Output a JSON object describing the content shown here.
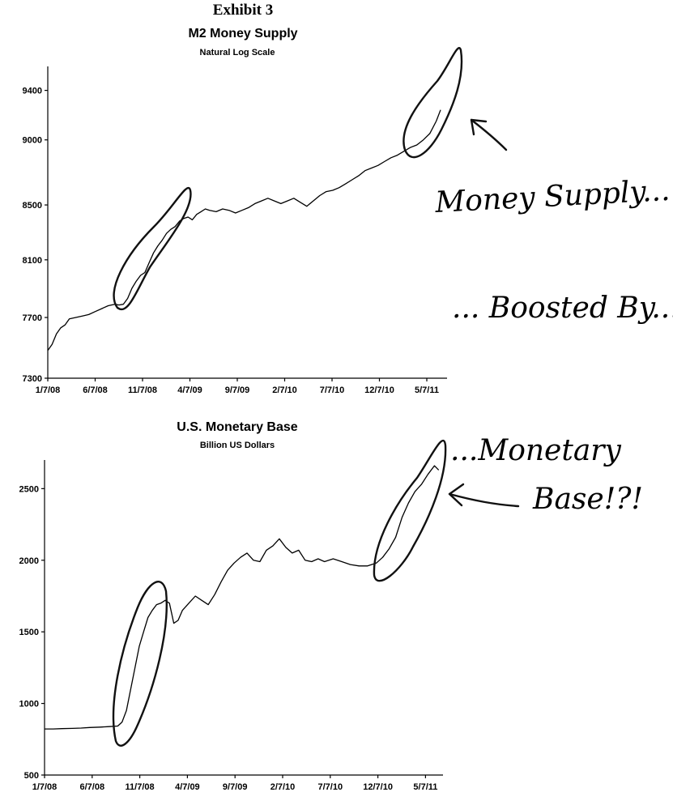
{
  "header": {
    "exhibit": "Exhibit 3"
  },
  "chart_data": [
    {
      "type": "line",
      "title": "M2 Money Supply",
      "subtitle": "Natural Log Scale",
      "xlabel": "",
      "ylabel": "",
      "log_scale": true,
      "ylim": [
        7300,
        9600
      ],
      "yticks": [
        7300,
        7700,
        8100,
        8500,
        9000,
        9400
      ],
      "xticks": [
        "1/7/08",
        "6/7/08",
        "11/7/08",
        "4/7/09",
        "9/7/09",
        "2/7/10",
        "7/7/10",
        "12/7/10",
        "5/7/11"
      ],
      "x_start": "2008-01-07",
      "x_end": "2011-07-25",
      "grid": false,
      "series": [
        {
          "points": [
            [
              "2008-01-07",
              7480
            ],
            [
              "2008-01-21",
              7520
            ],
            [
              "2008-02-04",
              7590
            ],
            [
              "2008-02-18",
              7630
            ],
            [
              "2008-03-03",
              7650
            ],
            [
              "2008-03-17",
              7690
            ],
            [
              "2008-04-07",
              7700
            ],
            [
              "2008-04-28",
              7710
            ],
            [
              "2008-05-19",
              7720
            ],
            [
              "2008-06-09",
              7740
            ],
            [
              "2008-06-30",
              7760
            ],
            [
              "2008-07-21",
              7780
            ],
            [
              "2008-08-11",
              7790
            ],
            [
              "2008-08-25",
              7785
            ],
            [
              "2008-09-08",
              7790
            ],
            [
              "2008-09-22",
              7830
            ],
            [
              "2008-10-06",
              7900
            ],
            [
              "2008-10-20",
              7950
            ],
            [
              "2008-11-03",
              7990
            ],
            [
              "2008-11-17",
              8010
            ],
            [
              "2008-12-01",
              8080
            ],
            [
              "2008-12-15",
              8150
            ],
            [
              "2008-12-29",
              8200
            ],
            [
              "2009-01-12",
              8240
            ],
            [
              "2009-01-26",
              8290
            ],
            [
              "2009-02-09",
              8320
            ],
            [
              "2009-02-23",
              8340
            ],
            [
              "2009-03-09",
              8380
            ],
            [
              "2009-03-23",
              8400
            ],
            [
              "2009-04-06",
              8410
            ],
            [
              "2009-04-20",
              8390
            ],
            [
              "2009-05-04",
              8430
            ],
            [
              "2009-05-18",
              8450
            ],
            [
              "2009-06-01",
              8470
            ],
            [
              "2009-06-15",
              8460
            ],
            [
              "2009-07-06",
              8450
            ],
            [
              "2009-07-27",
              8470
            ],
            [
              "2009-08-17",
              8460
            ],
            [
              "2009-09-07",
              8440
            ],
            [
              "2009-09-28",
              8460
            ],
            [
              "2009-10-19",
              8480
            ],
            [
              "2009-11-09",
              8510
            ],
            [
              "2009-11-30",
              8530
            ],
            [
              "2009-12-21",
              8550
            ],
            [
              "2010-01-11",
              8530
            ],
            [
              "2010-02-01",
              8510
            ],
            [
              "2010-02-22",
              8530
            ],
            [
              "2010-03-15",
              8550
            ],
            [
              "2010-04-05",
              8520
            ],
            [
              "2010-04-26",
              8490
            ],
            [
              "2010-05-17",
              8530
            ],
            [
              "2010-06-07",
              8570
            ],
            [
              "2010-06-28",
              8600
            ],
            [
              "2010-07-19",
              8610
            ],
            [
              "2010-08-09",
              8630
            ],
            [
              "2010-08-30",
              8660
            ],
            [
              "2010-09-20",
              8690
            ],
            [
              "2010-10-11",
              8720
            ],
            [
              "2010-11-01",
              8760
            ],
            [
              "2010-11-22",
              8780
            ],
            [
              "2010-12-13",
              8800
            ],
            [
              "2011-01-03",
              8830
            ],
            [
              "2011-01-24",
              8860
            ],
            [
              "2011-02-14",
              8880
            ],
            [
              "2011-03-07",
              8910
            ],
            [
              "2011-03-28",
              8940
            ],
            [
              "2011-04-18",
              8960
            ],
            [
              "2011-05-09",
              9000
            ],
            [
              "2011-05-30",
              9050
            ],
            [
              "2011-06-20",
              9150
            ],
            [
              "2011-07-04",
              9240
            ]
          ]
        }
      ]
    },
    {
      "type": "line",
      "title": "U.S. Monetary Base",
      "subtitle": "Billion US Dollars",
      "xlabel": "",
      "ylabel": "",
      "ylim": [
        500,
        2700
      ],
      "yticks": [
        500,
        1000,
        1500,
        2000,
        2500
      ],
      "xticks": [
        "1/7/08",
        "6/7/08",
        "11/7/08",
        "4/7/09",
        "9/7/09",
        "2/7/10",
        "7/7/10",
        "12/7/10",
        "5/7/11"
      ],
      "x_start": "2008-01-07",
      "x_end": "2011-07-25",
      "grid": false,
      "series": [
        {
          "points": [
            [
              "2008-01-07",
              822
            ],
            [
              "2008-02-04",
              822
            ],
            [
              "2008-03-03",
              824
            ],
            [
              "2008-04-07",
              826
            ],
            [
              "2008-05-05",
              828
            ],
            [
              "2008-06-02",
              832
            ],
            [
              "2008-07-07",
              835
            ],
            [
              "2008-08-04",
              838
            ],
            [
              "2008-09-01",
              842
            ],
            [
              "2008-09-15",
              870
            ],
            [
              "2008-09-29",
              950
            ],
            [
              "2008-10-13",
              1100
            ],
            [
              "2008-10-27",
              1250
            ],
            [
              "2008-11-10",
              1400
            ],
            [
              "2008-11-24",
              1500
            ],
            [
              "2008-12-08",
              1600
            ],
            [
              "2008-12-22",
              1650
            ],
            [
              "2009-01-05",
              1690
            ],
            [
              "2009-01-19",
              1700
            ],
            [
              "2009-02-02",
              1720
            ],
            [
              "2009-02-16",
              1700
            ],
            [
              "2009-03-02",
              1560
            ],
            [
              "2009-03-16",
              1580
            ],
            [
              "2009-03-30",
              1650
            ],
            [
              "2009-04-20",
              1700
            ],
            [
              "2009-05-11",
              1750
            ],
            [
              "2009-06-01",
              1720
            ],
            [
              "2009-06-22",
              1690
            ],
            [
              "2009-07-13",
              1760
            ],
            [
              "2009-08-03",
              1850
            ],
            [
              "2009-08-24",
              1930
            ],
            [
              "2009-09-14",
              1980
            ],
            [
              "2009-10-05",
              2020
            ],
            [
              "2009-10-26",
              2050
            ],
            [
              "2009-11-16",
              2000
            ],
            [
              "2009-12-07",
              1990
            ],
            [
              "2009-12-28",
              2070
            ],
            [
              "2010-01-18",
              2100
            ],
            [
              "2010-02-08",
              2150
            ],
            [
              "2010-03-01",
              2090
            ],
            [
              "2010-03-22",
              2050
            ],
            [
              "2010-04-12",
              2070
            ],
            [
              "2010-05-03",
              2000
            ],
            [
              "2010-05-24",
              1990
            ],
            [
              "2010-06-14",
              2010
            ],
            [
              "2010-07-05",
              1990
            ],
            [
              "2010-08-02",
              2010
            ],
            [
              "2010-08-30",
              1990
            ],
            [
              "2010-09-27",
              1970
            ],
            [
              "2010-10-25",
              1960
            ],
            [
              "2010-11-22",
              1960
            ],
            [
              "2010-12-20",
              1980
            ],
            [
              "2011-01-10",
              2020
            ],
            [
              "2011-01-31",
              2080
            ],
            [
              "2011-02-21",
              2160
            ],
            [
              "2011-03-14",
              2300
            ],
            [
              "2011-04-04",
              2400
            ],
            [
              "2011-04-25",
              2480
            ],
            [
              "2011-05-16",
              2530
            ],
            [
              "2011-06-06",
              2600
            ],
            [
              "2011-06-27",
              2660
            ],
            [
              "2011-07-11",
              2630
            ]
          ]
        }
      ]
    }
  ],
  "annotations": {
    "money_supply": "Money Supply...",
    "boosted_by": "... Boosted By...",
    "monetary": "...Monetary",
    "base": "Base!?!"
  }
}
